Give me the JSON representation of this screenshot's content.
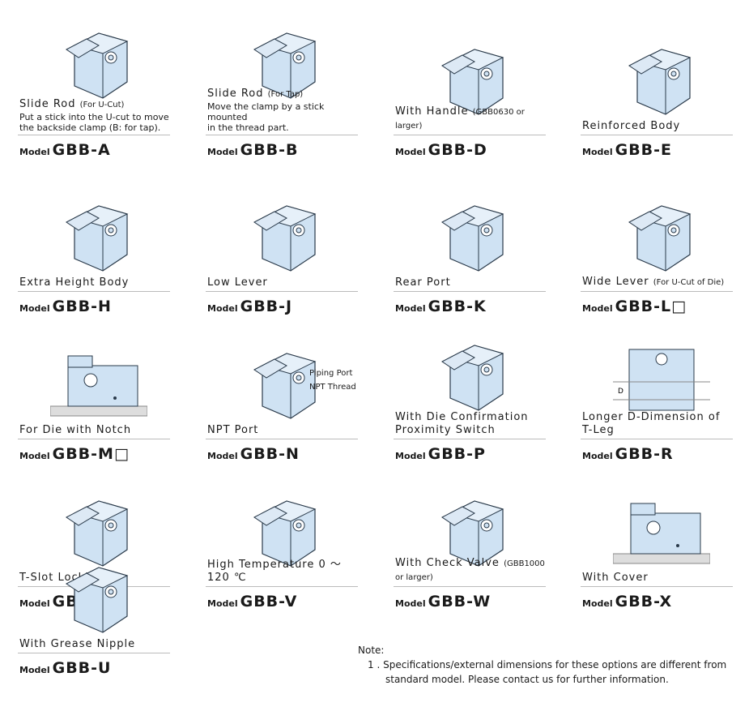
{
  "options": [
    {
      "label": "Slide Rod",
      "small": "(For U-Cut)",
      "desc": [
        "Put a stick into the U-cut to move",
        "the backside clamp (B: for tap)."
      ],
      "model_prefix": "Model",
      "model": "GBB-A",
      "icon": "slide-rod-ucut-clamp"
    },
    {
      "label": "Slide Rod",
      "small": "(For Tap)",
      "desc": [
        "Move the clamp by a stick mounted",
        "in the thread part."
      ],
      "model_prefix": "Model",
      "model": "GBB-B",
      "icon": "slide-rod-tap-clamp"
    },
    {
      "label": "With Handle",
      "small": "(GBB0630 or larger)",
      "desc": [],
      "model_prefix": "Model",
      "model": "GBB-D",
      "icon": "handle-clamp"
    },
    {
      "label": "Reinforced Body",
      "small": "",
      "desc": [],
      "model_prefix": "Model",
      "model": "GBB-E",
      "icon": "reinforced-clamp"
    },
    {
      "label": "Extra Height Body",
      "small": "",
      "desc": [],
      "model_prefix": "Model",
      "model": "GBB-H",
      "icon": "extra-height-clamp"
    },
    {
      "label": "Low Lever",
      "small": "",
      "desc": [],
      "model_prefix": "Model",
      "model": "GBB-J",
      "icon": "low-lever-clamp"
    },
    {
      "label": "Rear Port",
      "small": "",
      "desc": [],
      "model_prefix": "Model",
      "model": "GBB-K",
      "icon": "rear-port-clamp"
    },
    {
      "label": "Wide Lever",
      "small": "(For U-Cut of Die)",
      "desc": [],
      "model_prefix": "Model",
      "model": "GBB-L□",
      "icon": "wide-lever-clamp"
    },
    {
      "label": "For Die with Notch",
      "small": "",
      "desc": [],
      "model_prefix": "Model",
      "model": "GBB-M□",
      "icon": "notch-die-clamp"
    },
    {
      "label": "NPT Port",
      "small": "",
      "desc": [],
      "model_prefix": "Model",
      "model": "GBB-N",
      "icon": "npt-port-clamp",
      "callouts": [
        "Piping Port",
        "NPT Thread"
      ]
    },
    {
      "label": "With Die Confirmation",
      "label2": "Proximity Switch",
      "small": "",
      "desc": [],
      "model_prefix": "Model",
      "model": "GBB-P",
      "icon": "proximity-switch-clamp"
    },
    {
      "label": "Longer D-Dimension of T-Leg",
      "small": "",
      "desc": [],
      "model_prefix": "Model",
      "model": "GBB-R",
      "icon": "t-leg-clamp",
      "dim_label": "D"
    },
    {
      "label": "T-Slot Locking",
      "small": "",
      "desc": [],
      "model_prefix": "Model",
      "model": "GBB-T",
      "icon": "t-slot-clamp"
    },
    {
      "label": "High Temperature  0 ～ 120 ℃",
      "small": "",
      "desc": [],
      "model_prefix": "Model",
      "model": "GBB-V",
      "icon": "high-temp-clamp"
    },
    {
      "label": "With Check Valve",
      "small": "(GBB1000 or larger)",
      "desc": [],
      "model_prefix": "Model",
      "model": "GBB-W",
      "icon": "check-valve-clamp"
    },
    {
      "label": "With Cover",
      "small": "",
      "desc": [],
      "model_prefix": "Model",
      "model": "GBB-X",
      "icon": "cover-clamp"
    },
    {
      "label": "With Grease Nipple",
      "small": "",
      "desc": [],
      "model_prefix": "Model",
      "model": "GBB-U",
      "icon": "grease-nipple-clamp"
    }
  ],
  "note": {
    "title": "Note:",
    "items": [
      "1 .  Specifications/external dimensions for these options are different from",
      "standard model. Please contact us for further information."
    ]
  },
  "colors": {
    "part_fill": "#cfe2f3",
    "part_stroke": "#2a3a4a",
    "rule": "#bbbbbb"
  }
}
